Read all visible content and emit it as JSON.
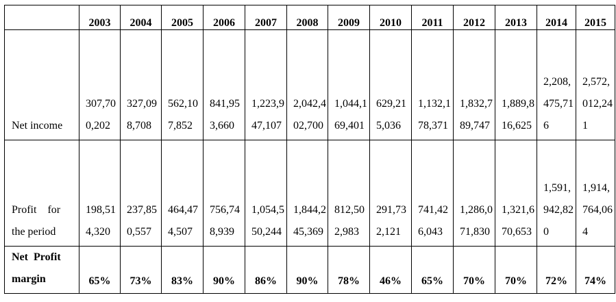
{
  "table": {
    "years": [
      "2003",
      "2004",
      "2005",
      "2006",
      "2007",
      "2008",
      "2009",
      "2010",
      "2011",
      "2012",
      "2013",
      "2014",
      "2015"
    ],
    "rows": [
      {
        "label_lines": [
          "Net income"
        ],
        "values": [
          "307,700,202",
          "327,098,708",
          "562,107,852",
          "841,953,660",
          "1,223,947,107",
          "2,042,402,700",
          "1,044,169,401",
          "629,215,036",
          "1,132,178,371",
          "1,832,789,747",
          "1,889,816,625",
          "2,208,475,716",
          "2,572,012,241"
        ]
      },
      {
        "label_lines": [
          "Profit    for",
          "the period"
        ],
        "values": [
          "198,514,320",
          "237,850,557",
          "464,474,507",
          "756,748,939",
          "1,054,550,244",
          "1,844,245,369",
          "812,502,983",
          "291,732,121",
          "741,426,043",
          "1,286,071,830",
          "1,321,670,653",
          "1,591,942,820",
          "1,914,764,064"
        ]
      },
      {
        "label_lines": [
          "Net  Profit",
          "margin"
        ],
        "values": [
          "65%",
          "73%",
          "83%",
          "90%",
          "86%",
          "90%",
          "78%",
          "46%",
          "65%",
          "70%",
          "70%",
          "72%",
          "74%"
        ]
      }
    ]
  }
}
